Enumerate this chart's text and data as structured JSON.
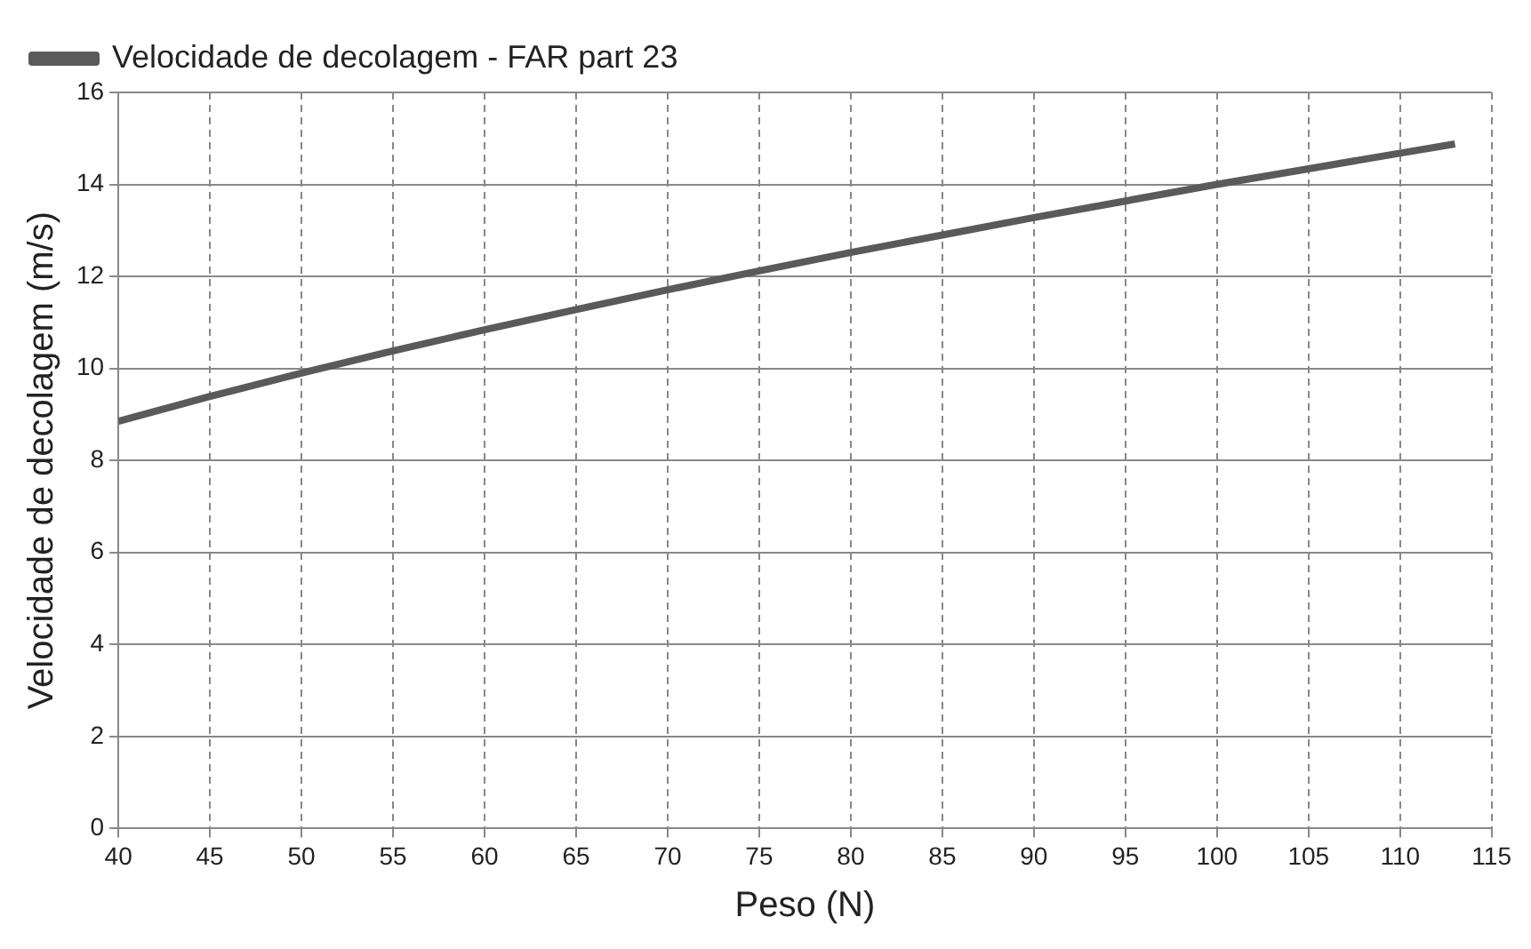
{
  "chart_data": {
    "type": "line",
    "xlabel": "Peso (N)",
    "ylabel": "Velocidade de decolagem (m/s)",
    "x": [
      40,
      45,
      50,
      55,
      60,
      65,
      70,
      75,
      80,
      85,
      90,
      95,
      100,
      105,
      110,
      113
    ],
    "series": [
      {
        "name": "Velocidade de decolagem - FAR part 23",
        "color": "#5a5a5a",
        "values": [
          8.85,
          9.39,
          9.9,
          10.38,
          10.84,
          11.28,
          11.71,
          12.12,
          12.52,
          12.9,
          13.28,
          13.64,
          14.0,
          14.34,
          14.68,
          14.88
        ]
      }
    ],
    "xlim": [
      40,
      115
    ],
    "xticks": [
      40,
      45,
      50,
      55,
      60,
      65,
      70,
      75,
      80,
      85,
      90,
      95,
      100,
      105,
      110,
      115
    ],
    "ylim": [
      0,
      16
    ],
    "yticks": [
      0,
      2,
      4,
      6,
      8,
      10,
      12,
      14,
      16
    ],
    "grid": true,
    "legend": "top left",
    "marker": "none",
    "line_style": "solid"
  }
}
